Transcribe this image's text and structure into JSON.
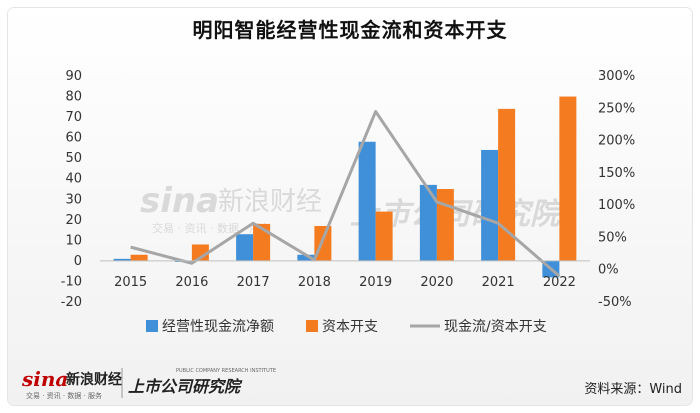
{
  "title": "明阳智能经营性现金流和资本开支",
  "source_note": "资料来源：Wind",
  "watermark": {
    "sina_logo": "sina",
    "sina_cn": "新浪财经",
    "institute_cn": "上市公司研究院",
    "institute_en": "PUBLIC COMPANY RESEARCH INSTITUTE",
    "tags": "交易 · 资讯 · 数据 · 服务"
  },
  "colors": {
    "bar_ocf": "#3f8fd9",
    "bar_capex": "#f47b20",
    "line_ratio": "#a6a6a6"
  },
  "chart_data": {
    "type": "bar",
    "categories": [
      "2015",
      "2016",
      "2017",
      "2018",
      "2019",
      "2020",
      "2021",
      "2022"
    ],
    "series": [
      {
        "name": "经营性现金流净额",
        "type": "bar",
        "axis": "left",
        "values": [
          1,
          0,
          13,
          3,
          58,
          37,
          54,
          -8
        ]
      },
      {
        "name": "资本开支",
        "type": "bar",
        "axis": "left",
        "values": [
          3,
          8,
          18,
          17,
          24,
          35,
          74,
          80
        ]
      },
      {
        "name": "现金流/资本开支",
        "type": "line",
        "axis": "right",
        "values": [
          35,
          10,
          72,
          15,
          245,
          105,
          72,
          -10
        ]
      }
    ],
    "y_left": {
      "min": -20,
      "max": 90,
      "ticks": [
        -20,
        -10,
        0,
        10,
        20,
        30,
        40,
        50,
        60,
        70,
        80,
        90
      ]
    },
    "y_right": {
      "min": -50,
      "max": 300,
      "ticks": [
        -50,
        0,
        50,
        100,
        150,
        200,
        250,
        300
      ],
      "tick_labels": [
        "-50%",
        "0%",
        "50%",
        "100%",
        "150%",
        "200%",
        "250%",
        "300%"
      ]
    },
    "legend_position": "bottom",
    "grid": false
  }
}
